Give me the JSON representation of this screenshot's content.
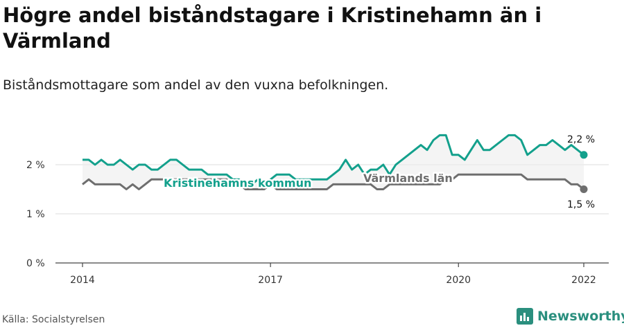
{
  "header": {
    "title": "Högre andel biståndstagare i Kristinehamn än i Värmland",
    "subtitle": "Biståndsmottagare som andel av den vuxna befolkningen."
  },
  "footer": {
    "source": "Källa: Socialstyrelsen",
    "brand": "Newsworthy"
  },
  "colors": {
    "kommun": "#13a08c",
    "lan": "#6e6e6e",
    "band": "#ececec",
    "brand": "#2a8f7e"
  },
  "chart_data": {
    "type": "line",
    "title": "Högre andel biståndstagare i Kristinehamn än i Värmland",
    "subtitle": "Biståndsmottagare som andel av den vuxna befolkningen.",
    "x_unit": "year (monthly data)",
    "xlim": [
      2014.0,
      2022.0
    ],
    "ylim": [
      0,
      2.8
    ],
    "x_ticks": [
      2014,
      2017,
      2020,
      2022
    ],
    "x_tick_labels": [
      "2014",
      "2017",
      "2020",
      "2022"
    ],
    "y_ticks": [
      0,
      1,
      2
    ],
    "y_tick_labels": [
      "0 %",
      "1 %",
      "2 %"
    ],
    "grid": "horizontal",
    "end_labels": [
      "2,2 %",
      "1,5 %"
    ],
    "series": [
      {
        "name": "Kristinehamns kommun",
        "color": "#13a08c",
        "x": [
          2014.0,
          2014.1,
          2014.2,
          2014.3,
          2014.4,
          2014.5,
          2014.6,
          2014.7,
          2014.8,
          2014.9,
          2015.0,
          2015.1,
          2015.2,
          2015.3,
          2015.4,
          2015.5,
          2015.6,
          2015.7,
          2015.8,
          2015.9,
          2016.0,
          2016.1,
          2016.2,
          2016.3,
          2016.4,
          2016.5,
          2016.6,
          2016.7,
          2016.8,
          2016.9,
          2017.0,
          2017.1,
          2017.2,
          2017.3,
          2017.4,
          2017.5,
          2017.6,
          2017.7,
          2017.8,
          2017.9,
          2018.0,
          2018.1,
          2018.2,
          2018.3,
          2018.4,
          2018.5,
          2018.6,
          2018.7,
          2018.8,
          2018.9,
          2019.0,
          2019.1,
          2019.2,
          2019.3,
          2019.4,
          2019.5,
          2019.6,
          2019.7,
          2019.8,
          2019.9,
          2020.0,
          2020.1,
          2020.2,
          2020.3,
          2020.4,
          2020.5,
          2020.6,
          2020.7,
          2020.8,
          2020.9,
          2021.0,
          2021.1,
          2021.2,
          2021.3,
          2021.4,
          2021.5,
          2021.6,
          2021.7,
          2021.8,
          2021.9,
          2022.0
        ],
        "values": [
          2.1,
          2.1,
          2.0,
          2.1,
          2.0,
          2.0,
          2.1,
          2.0,
          1.9,
          2.0,
          2.0,
          1.9,
          1.9,
          2.0,
          2.1,
          2.1,
          2.0,
          1.9,
          1.9,
          1.9,
          1.8,
          1.8,
          1.8,
          1.8,
          1.7,
          1.7,
          1.6,
          1.6,
          1.7,
          1.6,
          1.7,
          1.8,
          1.8,
          1.8,
          1.7,
          1.7,
          1.7,
          1.7,
          1.7,
          1.7,
          1.8,
          1.9,
          2.1,
          1.9,
          2.0,
          1.8,
          1.9,
          1.9,
          2.0,
          1.8,
          2.0,
          2.1,
          2.2,
          2.3,
          2.4,
          2.3,
          2.5,
          2.6,
          2.6,
          2.2,
          2.2,
          2.1,
          2.3,
          2.5,
          2.3,
          2.3,
          2.4,
          2.5,
          2.6,
          2.6,
          2.5,
          2.2,
          2.3,
          2.4,
          2.4,
          2.5,
          2.4,
          2.3,
          2.4,
          2.3,
          2.2
        ]
      },
      {
        "name": "Värmlands län",
        "color": "#6e6e6e",
        "x": [
          2014.0,
          2014.1,
          2014.2,
          2014.3,
          2014.4,
          2014.5,
          2014.6,
          2014.7,
          2014.8,
          2014.9,
          2015.0,
          2015.1,
          2015.2,
          2015.3,
          2015.4,
          2015.5,
          2015.6,
          2015.7,
          2015.8,
          2015.9,
          2016.0,
          2016.1,
          2016.2,
          2016.3,
          2016.4,
          2016.5,
          2016.6,
          2016.7,
          2016.8,
          2016.9,
          2017.0,
          2017.1,
          2017.2,
          2017.3,
          2017.4,
          2017.5,
          2017.6,
          2017.7,
          2017.8,
          2017.9,
          2018.0,
          2018.1,
          2018.2,
          2018.3,
          2018.4,
          2018.5,
          2018.6,
          2018.7,
          2018.8,
          2018.9,
          2019.0,
          2019.1,
          2019.2,
          2019.3,
          2019.4,
          2019.5,
          2019.6,
          2019.7,
          2019.8,
          2019.9,
          2020.0,
          2020.1,
          2020.2,
          2020.3,
          2020.4,
          2020.5,
          2020.6,
          2020.7,
          2020.8,
          2020.9,
          2021.0,
          2021.1,
          2021.2,
          2021.3,
          2021.4,
          2021.5,
          2021.6,
          2021.7,
          2021.8,
          2021.9,
          2022.0
        ],
        "values": [
          1.6,
          1.7,
          1.6,
          1.6,
          1.6,
          1.6,
          1.6,
          1.5,
          1.6,
          1.5,
          1.6,
          1.7,
          1.7,
          1.7,
          1.7,
          1.7,
          1.7,
          1.7,
          1.7,
          1.7,
          1.7,
          1.7,
          1.7,
          1.7,
          1.6,
          1.6,
          1.5,
          1.5,
          1.5,
          1.5,
          1.6,
          1.5,
          1.5,
          1.5,
          1.5,
          1.5,
          1.5,
          1.5,
          1.5,
          1.5,
          1.6,
          1.6,
          1.6,
          1.6,
          1.6,
          1.6,
          1.6,
          1.5,
          1.5,
          1.6,
          1.6,
          1.6,
          1.6,
          1.6,
          1.6,
          1.6,
          1.6,
          1.6,
          1.7,
          1.7,
          1.8,
          1.8,
          1.8,
          1.8,
          1.8,
          1.8,
          1.8,
          1.8,
          1.8,
          1.8,
          1.8,
          1.7,
          1.7,
          1.7,
          1.7,
          1.7,
          1.7,
          1.7,
          1.6,
          1.6,
          1.5
        ]
      }
    ]
  }
}
